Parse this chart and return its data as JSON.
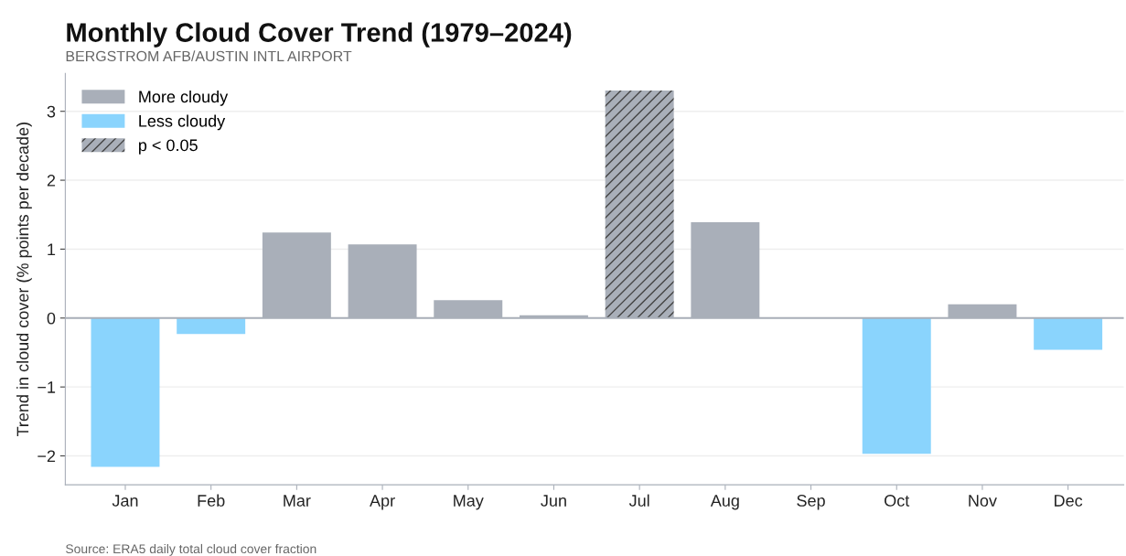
{
  "chart_data": {
    "type": "bar",
    "title": "Monthly Cloud Cover Trend (1979–2024)",
    "subtitle": "BERGSTROM AFB/AUSTIN INTL AIRPORT",
    "ylabel": "Trend in cloud cover (% points per decade)",
    "categories": [
      "Jan",
      "Feb",
      "Mar",
      "Apr",
      "May",
      "Jun",
      "Jul",
      "Aug",
      "Sep",
      "Oct",
      "Nov",
      "Dec"
    ],
    "series": [
      {
        "name": "More cloudy",
        "color": "#a9afb9",
        "values": [
          null,
          null,
          1.24,
          1.07,
          0.26,
          0.04,
          null,
          1.39,
          0.01,
          null,
          0.2,
          null
        ]
      },
      {
        "name": "Less cloudy",
        "color": "#8ad4fd",
        "values": [
          -2.16,
          -0.23,
          null,
          null,
          null,
          null,
          null,
          null,
          null,
          -1.97,
          null,
          -0.46
        ]
      },
      {
        "name": "p < 0.05",
        "color": "#a9afb9",
        "values": [
          null,
          null,
          null,
          null,
          null,
          null,
          3.3,
          null,
          null,
          null,
          null,
          null
        ]
      }
    ],
    "ylim": [
      -2.42,
      3.55
    ],
    "yticks": [
      {
        "value": -2,
        "label": "−2"
      },
      {
        "value": -1,
        "label": "−1"
      },
      0,
      1,
      2,
      3
    ],
    "ref_lines": [
      {
        "axis": "y",
        "value": 0,
        "color": "#a9afb9"
      }
    ],
    "grid": "y",
    "legend": "top left",
    "annotations": [
      "Source: ERA5 daily total cloud cover fraction"
    ]
  }
}
